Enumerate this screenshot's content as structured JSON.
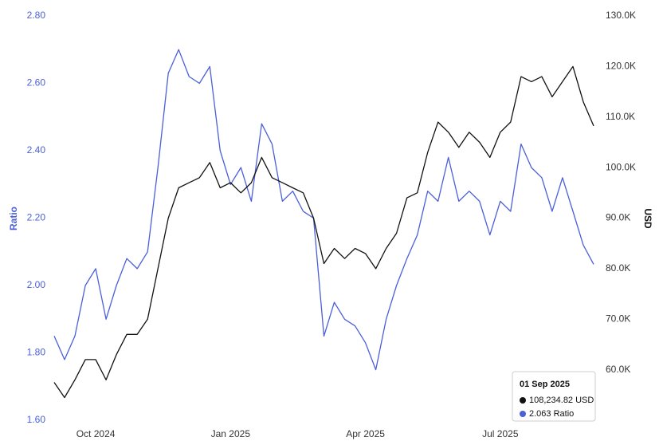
{
  "chart_data": {
    "type": "line",
    "ylabel": "Ratio",
    "y2label": "USD",
    "categories": [
      null,
      null,
      null,
      null,
      "Oct 2024",
      null,
      null,
      null,
      null,
      null,
      null,
      null,
      null,
      null,
      null,
      null,
      null,
      "Jan 2025",
      null,
      null,
      null,
      null,
      null,
      null,
      null,
      null,
      null,
      null,
      null,
      null,
      "Apr 2025",
      null,
      null,
      null,
      null,
      null,
      null,
      null,
      null,
      null,
      null,
      null,
      null,
      "Jul 2025",
      null,
      null,
      null,
      null,
      null,
      null,
      null,
      null,
      null
    ],
    "series": [
      {
        "color": "#4a5fd9",
        "axis": "y",
        "values": [
          1.85,
          1.78,
          1.85,
          2.0,
          2.05,
          1.9,
          2.0,
          2.08,
          2.05,
          2.1,
          2.35,
          2.63,
          2.7,
          2.62,
          2.6,
          2.65,
          2.4,
          2.3,
          2.35,
          2.25,
          2.48,
          2.42,
          2.25,
          2.28,
          2.22,
          2.2,
          1.85,
          1.95,
          1.9,
          1.88,
          1.83,
          1.75,
          1.9,
          2.0,
          2.08,
          2.15,
          2.28,
          2.25,
          2.38,
          2.25,
          2.28,
          2.25,
          2.15,
          2.25,
          2.22,
          2.42,
          2.35,
          2.32,
          2.22,
          2.32,
          2.22,
          2.12,
          2.063
        ]
      },
      {
        "color": "#111111",
        "axis": "y2",
        "values": [
          57500,
          54500,
          58000,
          62000,
          62000,
          58000,
          63000,
          67000,
          67000,
          70000,
          80000,
          90000,
          96000,
          97000,
          98000,
          101000,
          96000,
          97000,
          95000,
          97000,
          102000,
          98000,
          97000,
          96000,
          95000,
          90000,
          81000,
          84000,
          82000,
          84000,
          83000,
          80000,
          84000,
          87000,
          94000,
          95000,
          103000,
          109000,
          107000,
          104000,
          107000,
          105000,
          102000,
          107000,
          109000,
          118000,
          117000,
          118000,
          114000,
          117000,
          120000,
          113000,
          108234.82
        ]
      }
    ],
    "ylim": [
      1.6,
      2.8
    ],
    "yticks": [
      {
        "value": 1.6,
        "label": "1.60"
      },
      {
        "value": 1.8,
        "label": "1.80"
      },
      {
        "value": 2.0,
        "label": "2.00"
      },
      {
        "value": 2.2,
        "label": "2.20"
      },
      {
        "value": 2.4,
        "label": "2.40"
      },
      {
        "value": 2.6,
        "label": "2.60"
      },
      {
        "value": 2.8,
        "label": "2.80"
      }
    ],
    "y2lim": [
      50000,
      130000
    ],
    "y2ticks": [
      {
        "value": 60000,
        "label": "60.0K"
      },
      {
        "value": 70000,
        "label": "70.0K"
      },
      {
        "value": 80000,
        "label": "80.0K"
      },
      {
        "value": 90000,
        "label": "90.0K"
      },
      {
        "value": 100000,
        "label": "100.0K"
      },
      {
        "value": 110000,
        "label": "110.0K"
      },
      {
        "value": 120000,
        "label": "120.0K"
      },
      {
        "value": 130000,
        "label": "130.0K"
      }
    ],
    "tooltip": {
      "title": "01 Sep 2025",
      "lines": [
        "108,234.82 USD",
        "2.063 Ratio"
      ]
    }
  }
}
